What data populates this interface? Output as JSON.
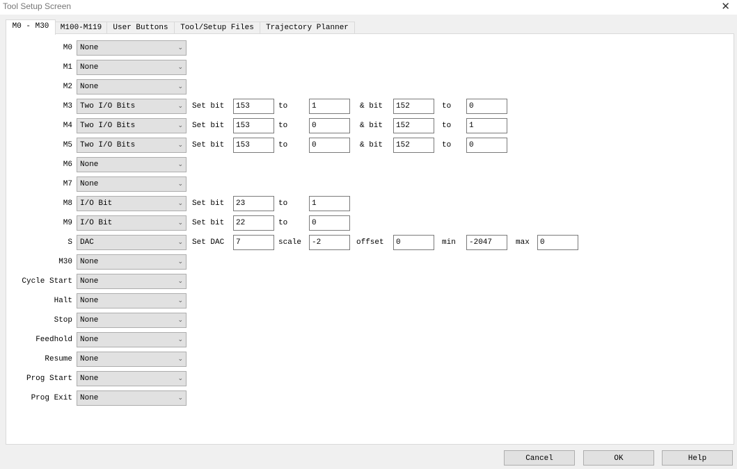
{
  "window": {
    "title": "Tool Setup Screen",
    "close_icon": "close-icon"
  },
  "tabs": [
    {
      "label": "M0 - M30",
      "active": true
    },
    {
      "label": "M100-M119"
    },
    {
      "label": "User Buttons"
    },
    {
      "label": "Tool/Setup Files"
    },
    {
      "label": "Trajectory Planner"
    }
  ],
  "rows": [
    {
      "label": "M0",
      "select": "None"
    },
    {
      "label": "M1",
      "select": "None"
    },
    {
      "label": "M2",
      "select": "None"
    },
    {
      "label": "M3",
      "select": "Two I/O Bits",
      "fields": [
        {
          "text": "Set bit",
          "value": "153"
        },
        {
          "text": "to",
          "value": "1"
        },
        {
          "text": "& bit",
          "value": "152"
        },
        {
          "text": "to",
          "value": "0"
        }
      ]
    },
    {
      "label": "M4",
      "select": "Two I/O Bits",
      "fields": [
        {
          "text": "Set bit",
          "value": "153"
        },
        {
          "text": "to",
          "value": "0"
        },
        {
          "text": "& bit",
          "value": "152"
        },
        {
          "text": "to",
          "value": "1"
        }
      ]
    },
    {
      "label": "M5",
      "select": "Two I/O Bits",
      "fields": [
        {
          "text": "Set bit",
          "value": "153"
        },
        {
          "text": "to",
          "value": "0"
        },
        {
          "text": "& bit",
          "value": "152"
        },
        {
          "text": "to",
          "value": "0"
        }
      ]
    },
    {
      "label": "M6",
      "select": "None"
    },
    {
      "label": "M7",
      "select": "None"
    },
    {
      "label": "M8",
      "select": "I/O Bit",
      "fields": [
        {
          "text": "Set bit",
          "value": "23"
        },
        {
          "text": "to",
          "value": "1"
        }
      ]
    },
    {
      "label": "M9",
      "select": "I/O Bit",
      "fields": [
        {
          "text": "Set bit",
          "value": "22"
        },
        {
          "text": "to",
          "value": "0"
        }
      ]
    },
    {
      "label": "S",
      "select": "DAC",
      "fields": [
        {
          "text": "Set DAC",
          "value": "7"
        },
        {
          "text": "scale",
          "value": "-2"
        },
        {
          "text": "offset",
          "value": "0"
        },
        {
          "text": "min",
          "value": "-2047"
        },
        {
          "text": "max",
          "value": "0"
        }
      ]
    },
    {
      "label": "M30",
      "select": "None"
    },
    {
      "label": "Cycle Start",
      "select": "None"
    },
    {
      "label": "Halt",
      "select": "None"
    },
    {
      "label": "Stop",
      "select": "None"
    },
    {
      "label": "Feedhold",
      "select": "None"
    },
    {
      "label": "Resume",
      "select": "None"
    },
    {
      "label": "Prog Start",
      "select": "None"
    },
    {
      "label": "Prog Exit",
      "select": "None"
    }
  ],
  "buttons": {
    "cancel": "Cancel",
    "ok": "OK",
    "help": "Help"
  }
}
